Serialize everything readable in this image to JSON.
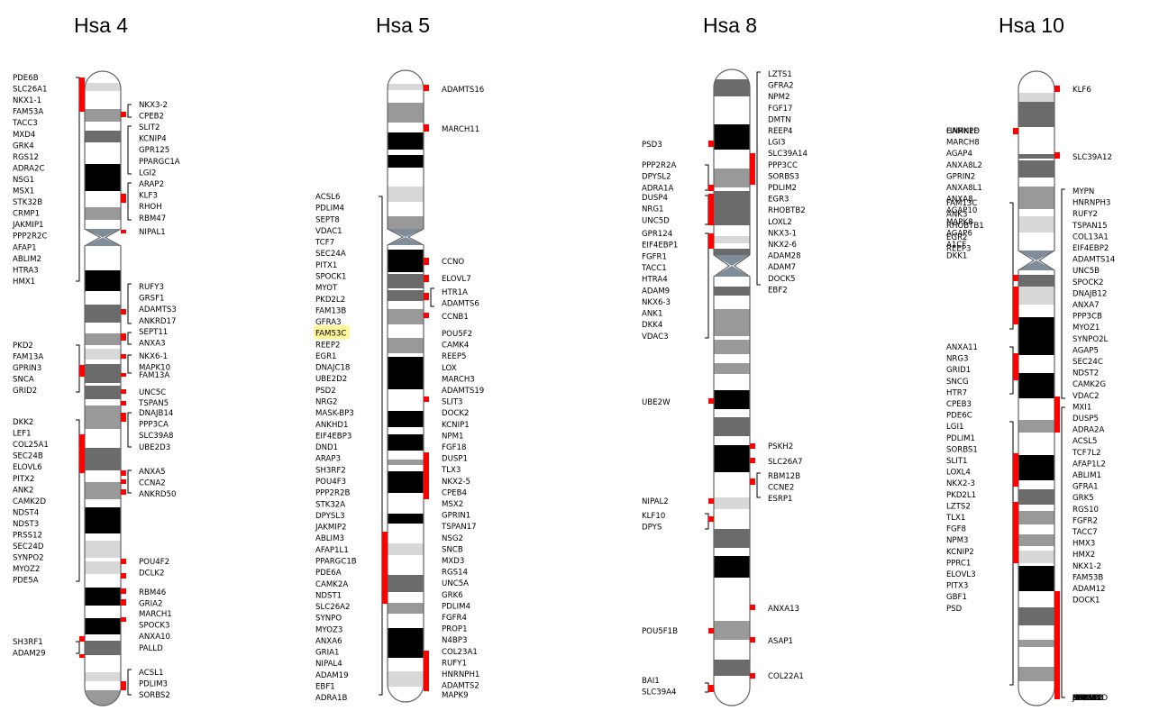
{
  "chromosomes": [
    {
      "title": "Hsa 4",
      "left_labels": [
        "PDE6B",
        "SLC26A1",
        "NKX1-1",
        "FAM53A",
        "TACC3",
        "MXD4",
        "GRK4",
        "RGS12",
        "ADRA2C",
        "NSG1",
        "MSX1",
        "STK32B",
        "CRMP1",
        "JAKMIP1",
        "PPP2R2C",
        "AFAP1",
        "ABLIM2",
        "HTRA3",
        "HMX1",
        "PKD2",
        "FAM13A",
        "GPRIN3",
        "SNCA",
        "GRID2",
        "DKK2",
        "LEF1",
        "COL25A1",
        "SEC24B",
        "ELOVL6",
        "PITX2",
        "ANK2",
        "CAMK2D",
        "NDST4",
        "NDST3",
        "PRSS12",
        "SEC24D",
        "SYNPO2",
        "MYOZ2",
        "PDE5A",
        "SH3RF1",
        "ADAM29"
      ],
      "right_labels": [
        "NKX3-2",
        "CPEB2",
        "SLIT2",
        "KCNIP4",
        "GPR125",
        "PPARGC1A",
        "LGI2",
        "ARAP2",
        "KLF3",
        "RHOH",
        "RBM47",
        "NIPAL1",
        "RUFY3",
        "GRSF1",
        "ADAMTS3",
        "ANKRD17",
        "SEPT11",
        "ANXA3",
        "NKX6-1",
        "MAPK10",
        "FAM13A",
        "UNC5C",
        "TSPAN5",
        "DNAJB14",
        "PPP3CA",
        "SLC39A8",
        "UBE2D3",
        "ANXA5",
        "CCNA2",
        "ANKRD50",
        "POU4F2",
        "DCLK2",
        "RBM46",
        "GRIA2",
        "MARCH1",
        "SPOCK3",
        "ANXA10",
        "PALLD",
        "ACSL1",
        "PDLIM3",
        "SORBS2"
      ]
    },
    {
      "title": "Hsa 5",
      "left_labels": [
        "ACSL6",
        "PDLIM4",
        "SEPT8",
        "VDAC1",
        "TCF7",
        "SEC24A",
        "PITX1",
        "SPOCK1",
        "MYOT",
        "PKD2L2",
        "FAM13B",
        "GFRA3",
        "FAM53C",
        "REEP2",
        "EGR1",
        "DNAJC18",
        "UBE2D2",
        "PSD2",
        "NRG2",
        "MASK-BP3",
        "ANKHD1",
        "EIF4EBP3",
        "DND1",
        "ARAP3",
        "SH3RF2",
        "POU4F3",
        "PPP2R2B",
        "STK32A",
        "DPYSL3",
        "JAKMIP2",
        "ABLIM3",
        "AFAP1L1",
        "PPARGC1B",
        "PDE6A",
        "CAMK2A",
        "NDST1",
        "SLC26A2",
        "SYNPO",
        "MYOZ3",
        "ANXA6",
        "GRIA1",
        "NIPAL4",
        "ADAM19",
        "EBF1",
        "ADRA1B"
      ],
      "right_labels": [
        "ADAMTS16",
        "MARCH11",
        "CCNO",
        "ELOVL7",
        "HTR1A",
        "ADAMTS6",
        "CCNB1",
        "POU5F2",
        "CAMK4",
        "REEP5",
        "LOX",
        "MARCH3",
        "ADAMTS19",
        "SLIT3",
        "DOCK2",
        "KCNIP1",
        "NPM1",
        "FGF18",
        "DUSP1",
        "TLX3",
        "NKX2-5",
        "CPEB4",
        "MSX2",
        "GPRIN1",
        "TSPAN17",
        "NSG2",
        "SNCB",
        "MXD3",
        "RGS14",
        "UNC5A",
        "GRK6",
        "PDLIM4",
        "FGFR4",
        "PROP1",
        "N4BP3",
        "COL23A1",
        "RUFY1",
        "HNRNPH1",
        "ADAMTS2",
        "MAPK9"
      ]
    },
    {
      "title": "Hsa 8",
      "left_labels": [
        "PSD3",
        "PPP2R2A",
        "DPYSL2",
        "ADRA1A",
        "DUSP4",
        "NRG1",
        "UNC5D",
        "GPR124",
        "EIF4EBP1",
        "FGFR1",
        "TACC1",
        "HTRA4",
        "ADAM9",
        "NKX6-3",
        "ANK1",
        "DKK4",
        "VDAC3",
        "UBE2W",
        "NIPAL2",
        "KLF10",
        "DPYS",
        "POU5F1B",
        "BAI1",
        "SLC39A4"
      ],
      "right_labels": [
        "LZTS1",
        "GFRA2",
        "NPM2",
        "FGF17",
        "DMTN",
        "REEP4",
        "LGI3",
        "SLC39A14",
        "PPP3CC",
        "SORBS3",
        "PDLIM2",
        "EGR3",
        "RHOBTB2",
        "LOXL2",
        "NKX3-1",
        "NKX2-6",
        "ADAM28",
        "ADAM7",
        "DOCK5",
        "EBF2",
        "PSKH2",
        "SLC26A7",
        "RBM12B",
        "CCNE2",
        "ESRP1",
        "ANXA13",
        "ASAP1",
        "COL22A1"
      ]
    },
    {
      "title": "Hsa 10",
      "left_labels": [
        "CAMK1D",
        "HNRNPF",
        "MARCH8",
        "AGAP4",
        "ANXA8L2",
        "GPRIN2",
        "ANXA8L1",
        "ANXA8",
        "AGAP10",
        "MAPK8",
        "AGAP6",
        "A1CF",
        "DKK1",
        "FAM13C",
        "ANK3",
        "RHOBTB1",
        "EGR2",
        "REEP3",
        "ANXA11",
        "NRG3",
        "GRID1",
        "SNCG",
        "HTR7",
        "CPEB3",
        "PDE6C",
        "LGI1",
        "PDLIM1",
        "SORBS1",
        "SLIT1",
        "LOXL4",
        "NKX2-3",
        "PKD2L1",
        "LZTS2",
        "TLX1",
        "FGF8",
        "NPM3",
        "KCNIP2",
        "PPRC1",
        "ELOVL3",
        "PITX3",
        "GBF1",
        "PSD"
      ],
      "right_labels": [
        "KLF6",
        "SLC39A12",
        "MYPN",
        "HNRNPH3",
        "RUFY2",
        "TSPAN15",
        "COL13A1",
        "EIF4EBP2",
        "ADAMTS14",
        "UNC5B",
        "SPOCK2",
        "DNAJB12",
        "ANXA7",
        "PPP3CB",
        "MYOZ1",
        "SYNPO2L",
        "AGAP5",
        "SEC24C",
        "NDST2",
        "CAMK2G",
        "VDAC2",
        "MXI1",
        "DUSP5",
        "ADRA2A",
        "ACSL5",
        "TCF7L2",
        "AFAP1L2",
        "ABLIM1",
        "GFRA1",
        "GRK5",
        "RGS10",
        "FGFR2",
        "TACC7",
        "HMX3",
        "HMX2",
        "NKX1-2",
        "FAM53B",
        "ADAM12",
        "DOCK1",
        "EBF3",
        "PPP2R2D",
        "JAKMIP3",
        "DPYSL4",
        "STK32C",
        "NKX6-2",
        "GPR123",
        "ADAM8",
        "CALY"
      ]
    }
  ],
  "colors": {
    "marker": "#ff0000",
    "highlight": "#fff59d",
    "dark": "#000000",
    "mid": "#6b6b6b",
    "light": "#999999",
    "pale": "#d8d8d8",
    "centromere": "#7f8c99"
  }
}
